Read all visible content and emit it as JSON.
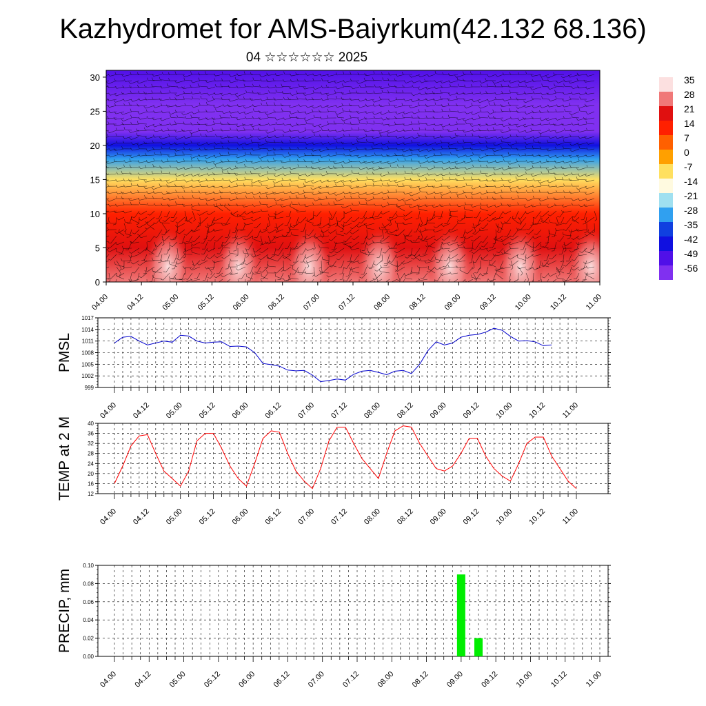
{
  "title": "Kazhydromet for AMS-Baiyrkum(42.132 68.136)",
  "subtitle": "04 ☆☆☆☆☆☆ 2025",
  "time_ticks": [
    "04.00",
    "04.12",
    "05.00",
    "05.12",
    "06.00",
    "06.12",
    "07.00",
    "07.12",
    "08.00",
    "08.12",
    "09.00",
    "09.12",
    "10.00",
    "10.12",
    "11.00"
  ],
  "colorbar": {
    "labels": [
      "35",
      "28",
      "21",
      "14",
      "7",
      "0",
      "-7",
      "-14",
      "-21",
      "-28",
      "-35",
      "-42",
      "-49",
      "-56"
    ],
    "colors": [
      "#fce0e0",
      "#f07878",
      "#e01010",
      "#ff2000",
      "#ff6000",
      "#ffa000",
      "#ffe060",
      "#fffae0",
      "#a0e0f0",
      "#30a0f0",
      "#1040e0",
      "#1010e0",
      "#5010e8",
      "#8030f0"
    ]
  },
  "chart_data": [
    {
      "type": "heatmap",
      "name": "temperature-wind-cross-section",
      "ylim": [
        0,
        31
      ],
      "y_ticks": [
        "0",
        "5",
        "10",
        "15",
        "20",
        "25",
        "30"
      ],
      "field_temperature_levels_km": [
        0,
        5,
        10,
        15,
        18,
        20,
        22,
        24,
        26,
        31
      ],
      "field_temperature_values": [
        30,
        24,
        14,
        -5,
        -28,
        -44,
        -56,
        -60,
        -55,
        -50
      ],
      "wind_barbs": true
    },
    {
      "type": "line",
      "ylabel": "PMSL",
      "ylim": [
        999,
        1017
      ],
      "y_ticks": [
        "999",
        "1002",
        "1005",
        "1008",
        "1011",
        "1014",
        "1017"
      ],
      "series_color": "#0000cc",
      "x_start_hours": 0,
      "x_step_hours": 3,
      "values": [
        1010.5,
        1012,
        1012.2,
        1011,
        1010,
        1010.5,
        1011,
        1010.7,
        1012.5,
        1012.3,
        1011,
        1010.5,
        1010.7,
        1010.8,
        1009.6,
        1009.7,
        1009.5,
        1008,
        1005.2,
        1004.9,
        1004.5,
        1003.5,
        1003.3,
        1003.4,
        1002.2,
        1000.5,
        1000.8,
        1001.2,
        1000.9,
        1002.4,
        1003.2,
        1003.4,
        1002.9,
        1002.3,
        1003.2,
        1003.4,
        1002.6,
        1005,
        1008.5,
        1010.8,
        1010,
        1010.5,
        1012,
        1012.5,
        1012.7,
        1013.3,
        1014.3,
        1013.8,
        1012.2,
        1011,
        1011.1,
        1010.8,
        1009.8,
        1010
      ]
    },
    {
      "type": "line",
      "ylabel": "TEMP at 2 M",
      "ylim": [
        12,
        40
      ],
      "y_ticks": [
        "12",
        "16",
        "20",
        "24",
        "28",
        "32",
        "36",
        "40"
      ],
      "series_color": "#ff0000",
      "x_start_hours": 0,
      "x_step_hours": 3,
      "values": [
        16,
        23,
        31,
        35,
        35.5,
        28,
        21,
        18,
        15,
        21,
        33,
        36,
        36,
        30,
        23,
        18,
        15,
        24,
        34,
        37,
        36.5,
        28,
        21,
        17,
        14,
        22,
        33,
        38.5,
        38.5,
        32,
        26,
        22,
        18,
        28,
        37,
        39,
        38.5,
        32,
        27,
        22,
        21,
        23,
        28,
        34,
        34,
        27,
        22,
        19,
        17,
        24,
        32,
        34.5,
        34.5,
        27,
        22,
        17,
        14
      ]
    },
    {
      "type": "bar",
      "ylabel": "PRECIP, mm",
      "ylim": [
        0,
        0.1
      ],
      "y_ticks": [
        "0.00",
        "0.02",
        "0.04",
        "0.06",
        "0.08",
        "0.10"
      ],
      "series_color": "#00ee00",
      "bars": [
        {
          "x_hours": 120,
          "value": 0.09
        },
        {
          "x_hours": 126,
          "value": 0.02
        }
      ]
    }
  ]
}
